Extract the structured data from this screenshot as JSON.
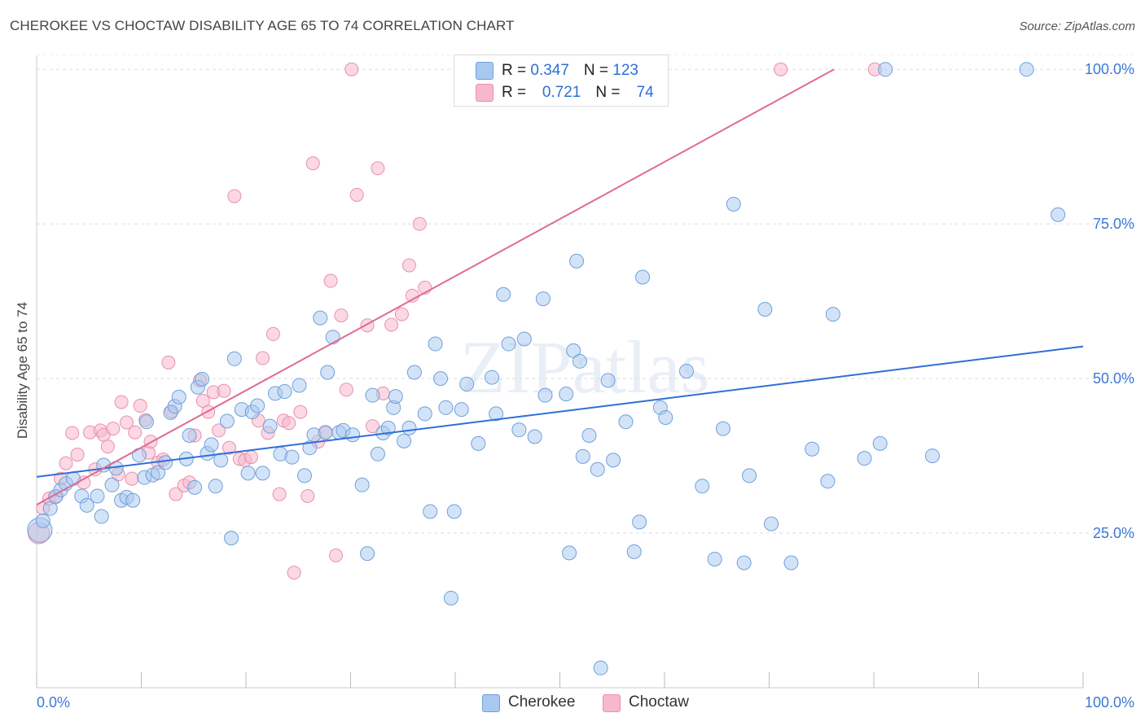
{
  "header": {
    "title": "CHEROKEE VS CHOCTAW DISABILITY AGE 65 TO 74 CORRELATION CHART",
    "source": "Source: ZipAtlas.com"
  },
  "watermark": "ZIPatlas",
  "legend": {
    "rows": [
      {
        "r_label": "R = ",
        "r_value": "0.347",
        "n_label": "N = ",
        "n_value": "123",
        "color": "#a8c8f0"
      },
      {
        "r_label": "R = ",
        "r_value": "0.721",
        "n_label": "N = ",
        "n_value": "74",
        "color": "#f7b8cc"
      }
    ]
  },
  "bottom_legend": [
    "Cherokee",
    "Choctaw"
  ],
  "colors": {
    "cherokee_fill": "#a8c8f0",
    "cherokee_stroke": "#6fa0dc",
    "cherokee_line": "#2f6fd6",
    "choctaw_fill": "#f7b8cc",
    "choctaw_stroke": "#e891ad",
    "choctaw_line": "#e06a92",
    "tick_text": "#3c78d8"
  },
  "chart_data": {
    "type": "scatter",
    "title": "CHEROKEE VS CHOCTAW DISABILITY AGE 65 TO 74 CORRELATION CHART",
    "xlabel": "",
    "ylabel": "Disability Age 65 to 74",
    "xlim": [
      0,
      100
    ],
    "ylim": [
      0,
      102
    ],
    "x_tick_labels": [
      "0.0%",
      "100.0%"
    ],
    "y_tick_labels": [
      "25.0%",
      "50.0%",
      "75.0%",
      "100.0%"
    ],
    "y_ticks": [
      25,
      50,
      75,
      100
    ],
    "grid": "horizontal dashed",
    "legend_position": "top-center",
    "series": [
      {
        "name": "Cherokee",
        "R": 0.347,
        "N": 123,
        "trend": {
          "x": [
            0,
            100
          ],
          "y": [
            34.1,
            55.2
          ]
        },
        "points": [
          [
            0.3,
            25.5
          ],
          [
            0.6,
            27
          ],
          [
            1.3,
            29
          ],
          [
            1.8,
            30.9
          ],
          [
            2.3,
            32
          ],
          [
            2.8,
            33
          ],
          [
            3.5,
            33.8
          ],
          [
            4.3,
            31
          ],
          [
            4.8,
            29.5
          ],
          [
            5.8,
            31
          ],
          [
            6.2,
            27.7
          ],
          [
            6.4,
            36
          ],
          [
            7.2,
            32.8
          ],
          [
            7.6,
            35.5
          ],
          [
            8.1,
            30.3
          ],
          [
            8.6,
            30.8
          ],
          [
            9.2,
            30.3
          ],
          [
            9.8,
            37.6
          ],
          [
            10.3,
            34
          ],
          [
            10.5,
            43
          ],
          [
            11.1,
            34.4
          ],
          [
            11.6,
            34.8
          ],
          [
            12.3,
            36.4
          ],
          [
            12.8,
            44.5
          ],
          [
            13.2,
            45.5
          ],
          [
            13.6,
            47
          ],
          [
            14.3,
            37
          ],
          [
            14.6,
            40.8
          ],
          [
            15.1,
            32.4
          ],
          [
            15.4,
            48.6
          ],
          [
            15.8,
            49.9
          ],
          [
            16.3,
            37.9
          ],
          [
            16.7,
            39.3
          ],
          [
            17.1,
            32.6
          ],
          [
            17.6,
            36.8
          ],
          [
            18.2,
            43.1
          ],
          [
            18.6,
            24.2
          ],
          [
            18.9,
            53.2
          ],
          [
            19.6,
            45
          ],
          [
            20.2,
            34.7
          ],
          [
            20.6,
            44.6
          ],
          [
            21.1,
            45.6
          ],
          [
            21.6,
            34.7
          ],
          [
            22.3,
            42.3
          ],
          [
            22.8,
            47.6
          ],
          [
            23.3,
            37.8
          ],
          [
            23.7,
            47.9
          ],
          [
            24.4,
            37.3
          ],
          [
            25.1,
            48.9
          ],
          [
            25.6,
            34.3
          ],
          [
            26.1,
            38.8
          ],
          [
            26.5,
            40.9
          ],
          [
            27.1,
            59.8
          ],
          [
            27.6,
            41.3
          ],
          [
            27.8,
            51
          ],
          [
            28.3,
            56.7
          ],
          [
            28.9,
            41.3
          ],
          [
            29.3,
            41.6
          ],
          [
            30.2,
            40.9
          ],
          [
            31.1,
            32.8
          ],
          [
            31.6,
            21.7
          ],
          [
            32.1,
            47.3
          ],
          [
            32.6,
            37.8
          ],
          [
            33.1,
            41.2
          ],
          [
            33.6,
            42
          ],
          [
            34.1,
            45.3
          ],
          [
            34.3,
            47.1
          ],
          [
            35.1,
            39.9
          ],
          [
            35.6,
            42
          ],
          [
            36.1,
            51
          ],
          [
            37.1,
            44.3
          ],
          [
            37.6,
            28.5
          ],
          [
            38.1,
            55.6
          ],
          [
            38.6,
            50
          ],
          [
            39.1,
            45.3
          ],
          [
            39.6,
            14.5
          ],
          [
            39.9,
            28.5
          ],
          [
            40.6,
            45
          ],
          [
            41.1,
            49.1
          ],
          [
            42.2,
            39.5
          ],
          [
            43.5,
            50.2
          ],
          [
            43.9,
            44.3
          ],
          [
            44.6,
            63.6
          ],
          [
            45.1,
            55.6
          ],
          [
            46.1,
            41.7
          ],
          [
            46.6,
            56.4
          ],
          [
            47.6,
            40.6
          ],
          [
            48.4,
            62.9
          ],
          [
            48.6,
            47.3
          ],
          [
            50.6,
            47.5
          ],
          [
            50.9,
            21.8
          ],
          [
            51.3,
            54.5
          ],
          [
            51.6,
            69
          ],
          [
            51.9,
            52.8
          ],
          [
            52.2,
            37.4
          ],
          [
            52.8,
            40.8
          ],
          [
            53.6,
            35.3
          ],
          [
            53.9,
            3.2
          ],
          [
            54.6,
            49.7
          ],
          [
            55.1,
            36.8
          ],
          [
            56.3,
            43
          ],
          [
            57.1,
            22
          ],
          [
            57.6,
            26.8
          ],
          [
            57.9,
            66.4
          ],
          [
            59.6,
            45.3
          ],
          [
            60.1,
            43.7
          ],
          [
            62.1,
            51.2
          ],
          [
            63.6,
            32.6
          ],
          [
            64.8,
            20.8
          ],
          [
            65.6,
            41.9
          ],
          [
            66.6,
            78.2
          ],
          [
            67.6,
            20.2
          ],
          [
            68.1,
            34.3
          ],
          [
            69.6,
            61.2
          ],
          [
            70.2,
            26.5
          ],
          [
            72.1,
            20.2
          ],
          [
            74.1,
            38.6
          ],
          [
            75.6,
            33.4
          ],
          [
            76.1,
            60.4
          ],
          [
            79.1,
            37.1
          ],
          [
            80.6,
            39.5
          ],
          [
            81.1,
            100
          ],
          [
            85.6,
            37.5
          ],
          [
            94.6,
            100
          ],
          [
            97.6,
            76.5
          ]
        ]
      },
      {
        "name": "Choctaw",
        "R": 0.721,
        "N": 74,
        "trend": {
          "x": [
            0,
            76.2
          ],
          "y": [
            29.6,
            100
          ]
        },
        "points": [
          [
            0.2,
            25
          ],
          [
            0.6,
            29
          ],
          [
            1.2,
            30.6
          ],
          [
            1.9,
            31
          ],
          [
            2.3,
            33.8
          ],
          [
            2.8,
            36.3
          ],
          [
            3.4,
            41.2
          ],
          [
            3.9,
            37.7
          ],
          [
            4.5,
            33.2
          ],
          [
            5.1,
            41.3
          ],
          [
            5.6,
            35.3
          ],
          [
            6.1,
            41.6
          ],
          [
            6.4,
            40.9
          ],
          [
            6.8,
            39
          ],
          [
            7.3,
            41.9
          ],
          [
            7.8,
            34.5
          ],
          [
            8.1,
            46.2
          ],
          [
            8.6,
            42.9
          ],
          [
            9.1,
            33.8
          ],
          [
            9.4,
            41.3
          ],
          [
            9.9,
            45.6
          ],
          [
            10.4,
            43.3
          ],
          [
            10.7,
            38
          ],
          [
            10.9,
            39.8
          ],
          [
            11.6,
            36.4
          ],
          [
            12.1,
            36.9
          ],
          [
            12.6,
            52.6
          ],
          [
            12.9,
            44.7
          ],
          [
            13.3,
            31.3
          ],
          [
            14.1,
            32.7
          ],
          [
            14.6,
            33.2
          ],
          [
            15.1,
            40.8
          ],
          [
            15.6,
            49.7
          ],
          [
            15.9,
            46.4
          ],
          [
            16.4,
            44.6
          ],
          [
            16.9,
            47.8
          ],
          [
            17.4,
            41.6
          ],
          [
            17.9,
            48
          ],
          [
            18.4,
            38.8
          ],
          [
            18.9,
            79.5
          ],
          [
            19.4,
            37
          ],
          [
            19.9,
            36.8
          ],
          [
            20.5,
            37.3
          ],
          [
            21.2,
            43.2
          ],
          [
            21.6,
            53.3
          ],
          [
            22.1,
            41.2
          ],
          [
            22.6,
            57.2
          ],
          [
            23.2,
            31.3
          ],
          [
            23.6,
            43.2
          ],
          [
            24.1,
            42.8
          ],
          [
            25.2,
            44.6
          ],
          [
            25.9,
            31
          ],
          [
            26.4,
            84.8
          ],
          [
            26.9,
            39.8
          ],
          [
            27.6,
            41.2
          ],
          [
            28.1,
            65.8
          ],
          [
            28.6,
            21.4
          ],
          [
            29.1,
            60.2
          ],
          [
            29.6,
            48.2
          ],
          [
            30.1,
            100
          ],
          [
            30.6,
            79.7
          ],
          [
            31.6,
            58.6
          ],
          [
            32.1,
            42.3
          ],
          [
            32.6,
            84
          ],
          [
            33.1,
            47.6
          ],
          [
            33.9,
            58.7
          ],
          [
            34.9,
            60.4
          ],
          [
            35.6,
            68.3
          ],
          [
            35.9,
            63.4
          ],
          [
            36.6,
            75
          ],
          [
            37.1,
            64.7
          ],
          [
            71.1,
            100
          ],
          [
            80.1,
            100
          ],
          [
            24.6,
            18.6
          ]
        ]
      }
    ]
  }
}
